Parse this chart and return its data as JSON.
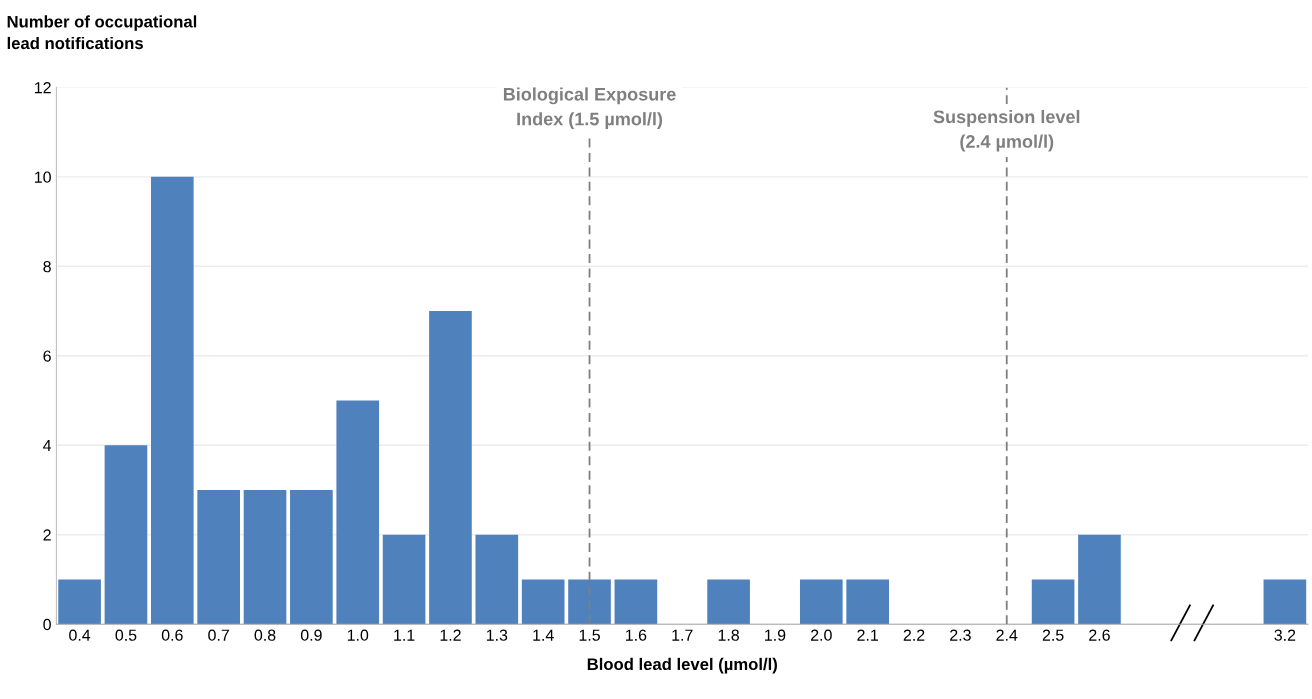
{
  "chart_data": {
    "type": "bar",
    "ylabel": "Number of occupational\nlead notifications",
    "xlabel": "Blood lead level (µmol/l)",
    "categories": [
      "0.4",
      "0.5",
      "0.6",
      "0.7",
      "0.8",
      "0.9",
      "1.0",
      "1.1",
      "1.2",
      "1.3",
      "1.4",
      "1.5",
      "1.6",
      "1.7",
      "1.8",
      "1.9",
      "2.0",
      "2.1",
      "2.2",
      "2.3",
      "2.4",
      "2.5",
      "2.6",
      null,
      null,
      null,
      "3.2"
    ],
    "values": [
      1,
      4,
      10,
      3,
      3,
      3,
      5,
      2,
      7,
      2,
      1,
      1,
      1,
      0,
      1,
      0,
      1,
      1,
      0,
      0,
      0,
      1,
      2,
      null,
      null,
      null,
      1
    ],
    "color": "#4f81bd",
    "ylim": [
      0,
      12
    ],
    "yticks": [
      0,
      2,
      4,
      6,
      8,
      10,
      12
    ],
    "grid": "y",
    "ref_lines": [
      {
        "axis": "x",
        "value": "1.5",
        "label": "Biological Exposure\nIndex (1.5 µmol/l)",
        "color": "#7f7f7f",
        "line_style": "dashed"
      },
      {
        "axis": "x",
        "value": "2.4",
        "label": "Suspension level\n(2.4 µmol/l)",
        "color": "#7f7f7f",
        "line_style": "dashed"
      }
    ]
  }
}
